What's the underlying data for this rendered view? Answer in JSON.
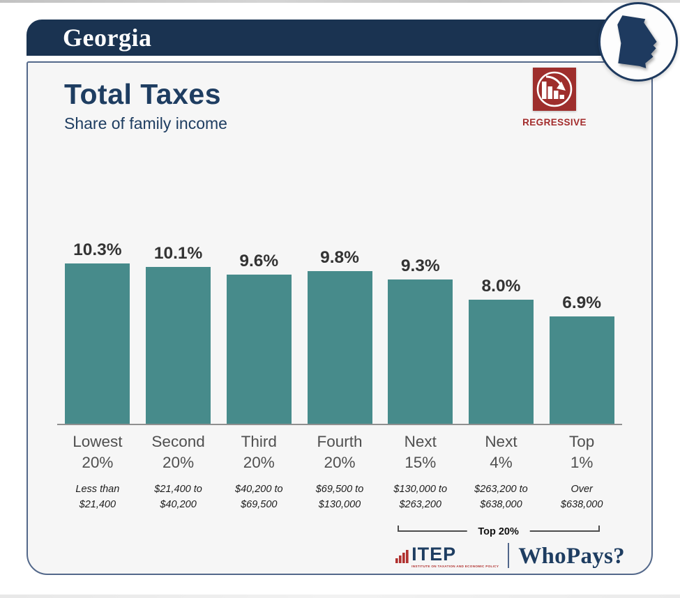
{
  "header": {
    "state_name": "Georgia"
  },
  "title": {
    "main": "Total Taxes",
    "subtitle": "Share of family income"
  },
  "badge": {
    "label": "REGRESSIVE",
    "icon": "declining-bars-arrow-icon"
  },
  "chart_data": {
    "type": "bar",
    "title": "Total Taxes",
    "subtitle": "Share of family income",
    "categories": [
      "Lowest 20%",
      "Second 20%",
      "Third 20%",
      "Fourth 20%",
      "Next 15%",
      "Next 4%",
      "Top 1%"
    ],
    "category_lines": [
      [
        "Lowest",
        "20%"
      ],
      [
        "Second",
        "20%"
      ],
      [
        "Third",
        "20%"
      ],
      [
        "Fourth",
        "20%"
      ],
      [
        "Next",
        "15%"
      ],
      [
        "Next",
        "4%"
      ],
      [
        "Top",
        "1%"
      ]
    ],
    "values": [
      10.3,
      10.1,
      9.6,
      9.8,
      9.3,
      8.0,
      6.9
    ],
    "value_labels": [
      "10.3%",
      "10.1%",
      "9.6%",
      "9.8%",
      "9.3%",
      "8.0%",
      "6.9%"
    ],
    "income_ranges": [
      [
        "Less than",
        "$21,400"
      ],
      [
        "$21,400 to",
        "$40,200"
      ],
      [
        "$40,200 to",
        "$69,500"
      ],
      [
        "$69,500 to",
        "$130,000"
      ],
      [
        "$130,000 to",
        "$263,200"
      ],
      [
        "$263,200 to",
        "$638,000"
      ],
      [
        "Over",
        "$638,000"
      ]
    ],
    "ylabel": "Share of family income",
    "ylim": [
      0,
      11.5
    ],
    "grid": false,
    "legend": "none",
    "bar_color": "#478b8b",
    "annotation": {
      "label": "Top 20%",
      "covers_categories": [
        "Next 15%",
        "Next 4%",
        "Top 1%"
      ]
    }
  },
  "footer": {
    "itep_name": "ITEP",
    "itep_tagline": "INSTITUTE ON TAXATION AND ECONOMIC POLICY",
    "whopays": "WhoPays?"
  },
  "colors": {
    "header_navy": "#1a3351",
    "title_navy": "#1e3d61",
    "bar_teal": "#478b8b",
    "regressive_red": "#9e2e2c",
    "card_background": "#f6f6f6",
    "card_border": "#53688a",
    "axis_gray": "#8f8f8f"
  }
}
